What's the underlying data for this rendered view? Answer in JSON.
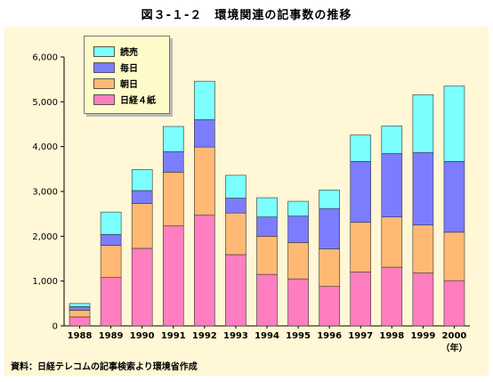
{
  "chart_data": {
    "type": "bar",
    "stacked": true,
    "title": "図３-１-２　環境関連の記事数の推移",
    "categories": [
      "1988",
      "1989",
      "1990",
      "1991",
      "1992",
      "1993",
      "1994",
      "1995",
      "1996",
      "1997",
      "1998",
      "1999",
      "2000"
    ],
    "x_unit": "（年）",
    "ylim": [
      0,
      6000
    ],
    "yticks": [
      "0",
      "1,000",
      "2,000",
      "3,000",
      "4,000",
      "5,000",
      "6,000"
    ],
    "ytick_values": [
      0,
      1000,
      2000,
      3000,
      4000,
      5000,
      6000
    ],
    "grid": false,
    "legend_position": "top-left",
    "series": [
      {
        "name": "日経４紙",
        "color": "#FF7EC0",
        "values": [
          200,
          1080,
          1730,
          2230,
          2470,
          1590,
          1150,
          1050,
          880,
          1200,
          1310,
          1180,
          1010
        ]
      },
      {
        "name": "朝日",
        "color": "#FFB974",
        "values": [
          150,
          720,
          1000,
          1200,
          1520,
          930,
          850,
          810,
          840,
          1110,
          1120,
          1070,
          1080
        ]
      },
      {
        "name": "毎日",
        "color": "#7C7CFF",
        "values": [
          80,
          240,
          290,
          460,
          610,
          330,
          430,
          590,
          900,
          1360,
          1420,
          1620,
          1580
        ]
      },
      {
        "name": "読売",
        "color": "#7CFFFF",
        "values": [
          70,
          500,
          470,
          560,
          860,
          510,
          430,
          330,
          410,
          590,
          610,
          1290,
          1680
        ]
      }
    ],
    "legend_order": [
      3,
      2,
      1,
      0
    ]
  },
  "footer": {
    "source": "資料：日経テレコムの記事検索より環境省作成"
  }
}
